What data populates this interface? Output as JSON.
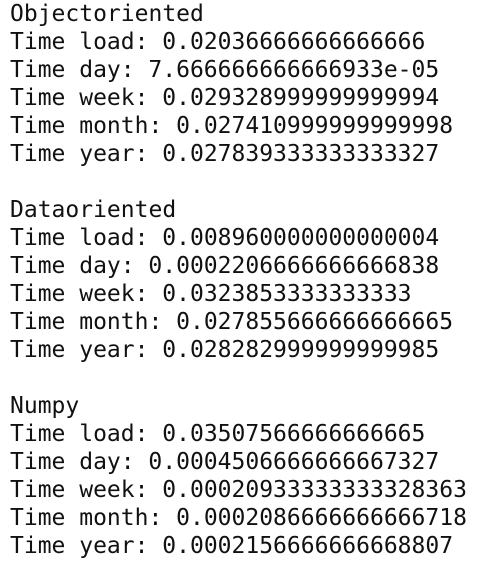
{
  "sections": [
    {
      "title": "Objectoriented",
      "lines": [
        {
          "label": "Time load:",
          "value": "0.02036666666666666"
        },
        {
          "label": "Time day:",
          "value": "7.666666666666933e-05"
        },
        {
          "label": "Time week:",
          "value": "0.029328999999999994"
        },
        {
          "label": "Time month:",
          "value": "0.027410999999999998"
        },
        {
          "label": "Time year:",
          "value": "0.027839333333333327"
        }
      ]
    },
    {
      "title": "Dataoriented",
      "lines": [
        {
          "label": "Time load:",
          "value": "0.008960000000000004"
        },
        {
          "label": "Time day:",
          "value": "0.0002206666666666838"
        },
        {
          "label": "Time week:",
          "value": "0.0323853333333333"
        },
        {
          "label": "Time month:",
          "value": "0.027855666666666665"
        },
        {
          "label": "Time year:",
          "value": "0.028282999999999985"
        }
      ]
    },
    {
      "title": "Numpy",
      "lines": [
        {
          "label": "Time load:",
          "value": "0.03507566666666665"
        },
        {
          "label": "Time day:",
          "value": "0.0004506666666667327"
        },
        {
          "label": "Time week:",
          "value": "0.00020933333333328363"
        },
        {
          "label": "Time month:",
          "value": "0.0002086666666666718"
        },
        {
          "label": "Time year:",
          "value": "0.0002156666666668807"
        }
      ]
    }
  ]
}
